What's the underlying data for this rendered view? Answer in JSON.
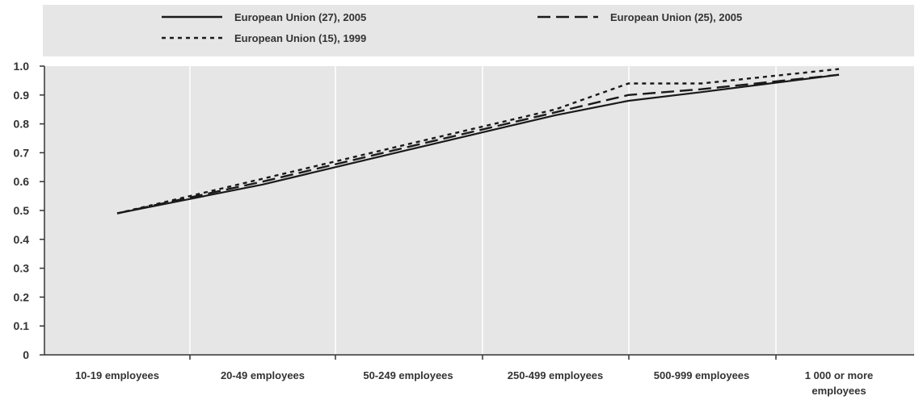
{
  "chart_data": {
    "type": "line",
    "categories": [
      "10-19 employees",
      "20-49 employees",
      "50-249 employees",
      "250-499 employees",
      "500-999 employees",
      "1 000 or more employees"
    ],
    "category_lines": [
      [
        "10-19 employees"
      ],
      [
        "20-49 employees"
      ],
      [
        "50-249 employees"
      ],
      [
        "250-499 employees"
      ],
      [
        "500-999 employees"
      ],
      [
        "1 000 or more",
        "employees"
      ]
    ],
    "series": [
      {
        "name": "European Union (27), 2005",
        "style": "solid",
        "values": [
          0.49,
          0.59,
          0.71,
          0.83,
          0.91,
          0.97
        ],
        "turn": {
          "x": 3.5,
          "y": 0.88
        }
      },
      {
        "name": "European Union (25), 2005",
        "style": "dashed",
        "values": [
          0.49,
          0.6,
          0.72,
          0.84,
          0.92,
          0.97
        ],
        "turn": {
          "x": 3.5,
          "y": 0.9
        }
      },
      {
        "name": "European Union (15), 1999",
        "style": "dotted",
        "values": [
          0.49,
          0.61,
          0.73,
          0.85,
          0.94,
          0.99
        ],
        "turn": {
          "x": 3.5,
          "y": 0.94
        }
      }
    ],
    "yticks": [
      "0",
      "0.1",
      "0.2",
      "0.3",
      "0.4",
      "0.5",
      "0.6",
      "0.7",
      "0.8",
      "0.9",
      "1.0"
    ],
    "ylim": [
      0,
      1.0
    ],
    "grid": "vertical",
    "legend": "top",
    "colors": {
      "plot_bg": "#e6e6e6",
      "legend_bg": "#e6e6e6",
      "grid": "#ffffff",
      "line": "#1a1a1a",
      "axis": "#333333"
    }
  }
}
